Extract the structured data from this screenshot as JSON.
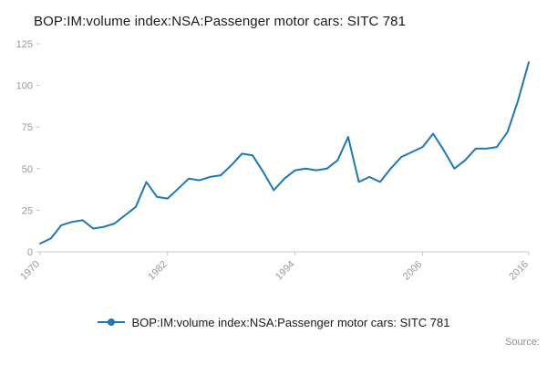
{
  "header": {
    "title": "BOP:IM:volume index:NSA:Passenger motor cars: SITC 781"
  },
  "footer": {
    "source_label": "Source:"
  },
  "colors": {
    "line": "#1f77b4",
    "axis": "#c8c8c8",
    "tick_text": "#999999"
  },
  "chart_data": {
    "type": "line",
    "title": "BOP:IM:volume index:NSA:Passenger motor cars: SITC 781",
    "xlabel": "",
    "ylabel": "",
    "xlim": [
      1970,
      2016
    ],
    "ylim": [
      0,
      125
    ],
    "x_ticks": [
      1970,
      1982,
      1994,
      2006,
      2016
    ],
    "y_ticks": [
      0,
      25,
      50,
      75,
      100,
      125
    ],
    "grid": false,
    "legend_position": "bottom",
    "x": [
      1970,
      1971,
      1972,
      1973,
      1974,
      1975,
      1976,
      1977,
      1978,
      1979,
      1980,
      1981,
      1982,
      1983,
      1984,
      1985,
      1986,
      1987,
      1988,
      1989,
      1990,
      1991,
      1992,
      1993,
      1994,
      1995,
      1996,
      1997,
      1998,
      1999,
      2000,
      2001,
      2002,
      2003,
      2004,
      2005,
      2006,
      2007,
      2008,
      2009,
      2010,
      2011,
      2012,
      2013,
      2014,
      2015,
      2016
    ],
    "series": [
      {
        "name": "BOP:IM:volume index:NSA:Passenger motor cars: SITC 781",
        "color": "#1f77b4",
        "values": [
          5,
          8,
          16,
          18,
          19,
          14,
          15,
          17,
          22,
          27,
          42,
          33,
          32,
          38,
          44,
          43,
          45,
          46,
          52,
          59,
          58,
          48,
          37,
          44,
          49,
          50,
          49,
          50,
          55,
          69,
          42,
          45,
          42,
          50,
          57,
          60,
          63,
          71,
          61,
          50,
          55,
          62,
          62,
          63,
          72,
          91,
          114
        ]
      }
    ]
  }
}
